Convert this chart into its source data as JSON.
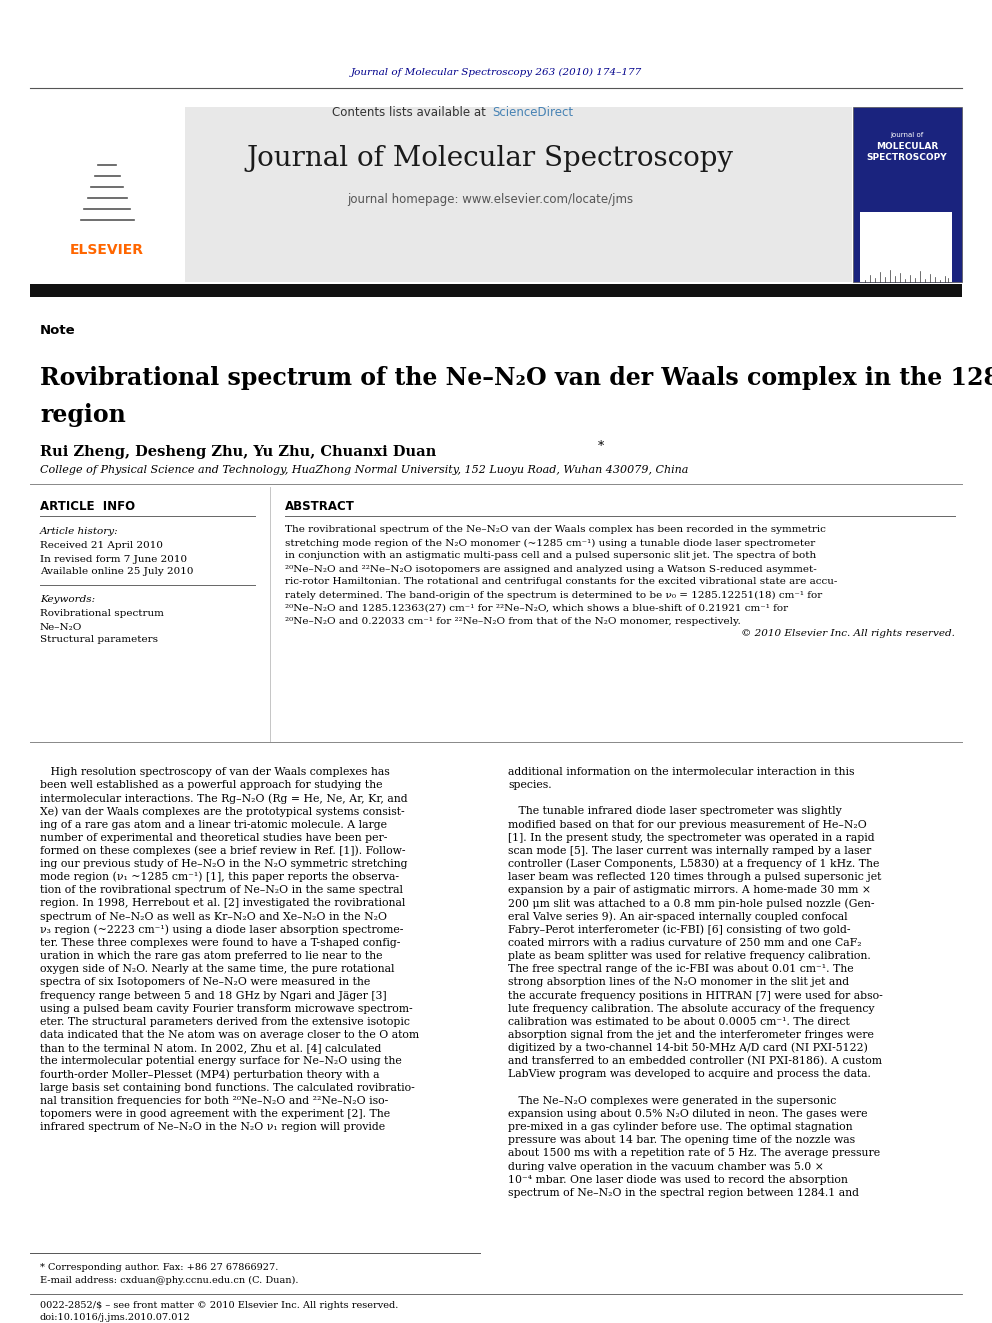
{
  "journal_citation": "Journal of Molecular Spectroscopy 263 (2010) 174–177",
  "journal_name": "Journal of Molecular Spectroscopy",
  "journal_homepage": "journal homepage: www.elsevier.com/locate/jms",
  "contents_line": "Contents lists available at ScienceDirect",
  "note_label": "Note",
  "authors": "Rui Zheng, Desheng Zhu, Yu Zhu, Chuanxi Duan",
  "affiliation": "College of Physical Science and Technology, HuaZhong Normal University, 152 Luoyu Road, Wuhan 430079, China",
  "article_info_title": "ARTICLE  INFO",
  "abstract_title": "ABSTRACT",
  "article_history_label": "Article history:",
  "received": "Received 21 April 2010",
  "revised": "In revised form 7 June 2010",
  "available": "Available online 25 July 2010",
  "keywords_label": "Keywords:",
  "keyword1": "Rovibrational spectrum",
  "keyword2": "Ne–N₂O",
  "keyword3": "Structural parameters",
  "copyright": "© 2010 Elsevier Inc. All rights reserved.",
  "footer_note": "* Corresponding author. Fax: +86 27 67866927.",
  "footer_email": "E-mail address: cxduan@phy.ccnu.edu.cn (C. Duan).",
  "footer_issn": "0022-2852/$ – see front matter © 2010 Elsevier Inc. All rights reserved.",
  "footer_doi": "doi:10.1016/j.jms.2010.07.012",
  "bg_color": "#ffffff",
  "text_color": "#000000",
  "journal_citation_color": "#00008B",
  "elsevier_color": "#FF6600",
  "sciencedirect_color": "#4682B4",
  "header_bg": "#e8e8e8",
  "abstract_lines": [
    "The rovibrational spectrum of the Ne–N₂O van der Waals complex has been recorded in the symmetric",
    "stretching mode region of the N₂O monomer (~1285 cm⁻¹) using a tunable diode laser spectrometer",
    "in conjunction with an astigmatic multi-pass cell and a pulsed supersonic slit jet. The spectra of both",
    "²⁰Ne–N₂O and ²²Ne–N₂O isotopomers are assigned and analyzed using a Watson S-reduced asymmet-",
    "ric-rotor Hamiltonian. The rotational and centrifugal constants for the excited vibrational state are accu-",
    "rately determined. The band-origin of the spectrum is determined to be ν₀ = 1285.12251(18) cm⁻¹ for",
    "²⁰Ne–N₂O and 1285.12363(27) cm⁻¹ for ²²Ne–N₂O, which shows a blue-shift of 0.21921 cm⁻¹ for",
    "²⁰Ne–N₂O and 0.22033 cm⁻¹ for ²²Ne–N₂O from that of the N₂O monomer, respectively."
  ],
  "body_col1": [
    "   High resolution spectroscopy of van der Waals complexes has",
    "been well established as a powerful approach for studying the",
    "intermolecular interactions. The Rg–N₂O (Rg = He, Ne, Ar, Kr, and",
    "Xe) van der Waals complexes are the prototypical systems consist-",
    "ing of a rare gas atom and a linear tri-atomic molecule. A large",
    "number of experimental and theoretical studies have been per-",
    "formed on these complexes (see a brief review in Ref. [1]). Follow-",
    "ing our previous study of He–N₂O in the N₂O symmetric stretching",
    "mode region (ν₁ ~1285 cm⁻¹) [1], this paper reports the observa-",
    "tion of the rovibrational spectrum of Ne–N₂O in the same spectral",
    "region. In 1998, Herrebout et al. [2] investigated the rovibrational",
    "spectrum of Ne–N₂O as well as Kr–N₂O and Xe–N₂O in the N₂O",
    "ν₃ region (~2223 cm⁻¹) using a diode laser absorption spectrome-",
    "ter. These three complexes were found to have a T-shaped config-",
    "uration in which the rare gas atom preferred to lie near to the",
    "oxygen side of N₂O. Nearly at the same time, the pure rotational",
    "spectra of six Isotopomers of Ne–N₂O were measured in the",
    "frequency range between 5 and 18 GHz by Ngari and Jäger [3]",
    "using a pulsed beam cavity Fourier transform microwave spectrom-",
    "eter. The structural parameters derived from the extensive isotopic",
    "data indicated that the Ne atom was on average closer to the O atom",
    "than to the terminal N atom. In 2002, Zhu et al. [4] calculated",
    "the intermolecular potential energy surface for Ne–N₂O using the",
    "fourth-order Moller–Plesset (MP4) perturbation theory with a",
    "large basis set containing bond functions. The calculated rovibratio-",
    "nal transition frequencies for both ²⁰Ne–N₂O and ²²Ne–N₂O iso-",
    "topomers were in good agreement with the experiment [2]. The",
    "infrared spectrum of Ne–N₂O in the N₂O ν₁ region will provide"
  ],
  "body_col2": [
    "additional information on the intermolecular interaction in this",
    "species.",
    "",
    "   The tunable infrared diode laser spectrometer was slightly",
    "modified based on that for our previous measurement of He–N₂O",
    "[1]. In the present study, the spectrometer was operated in a rapid",
    "scan mode [5]. The laser current was internally ramped by a laser",
    "controller (Laser Components, L5830) at a frequency of 1 kHz. The",
    "laser beam was reflected 120 times through a pulsed supersonic jet",
    "expansion by a pair of astigmatic mirrors. A home-made 30 mm ×",
    "200 μm slit was attached to a 0.8 mm pin-hole pulsed nozzle (Gen-",
    "eral Valve series 9). An air-spaced internally coupled confocal",
    "Fabry–Perot interferometer (ic-FBI) [6] consisting of two gold-",
    "coated mirrors with a radius curvature of 250 mm and one CaF₂",
    "plate as beam splitter was used for relative frequency calibration.",
    "The free spectral range of the ic-FBI was about 0.01 cm⁻¹. The",
    "strong absorption lines of the N₂O monomer in the slit jet and",
    "the accurate frequency positions in HITRAN [7] were used for abso-",
    "lute frequency calibration. The absolute accuracy of the frequency",
    "calibration was estimated to be about 0.0005 cm⁻¹. The direct",
    "absorption signal from the jet and the interferometer fringes were",
    "digitized by a two-channel 14-bit 50-MHz A/D card (NI PXI-5122)",
    "and transferred to an embedded controller (NI PXI-8186). A custom",
    "LabView program was developed to acquire and process the data.",
    "",
    "   The Ne–N₂O complexes were generated in the supersonic",
    "expansion using about 0.5% N₂O diluted in neon. The gases were",
    "pre-mixed in a gas cylinder before use. The optimal stagnation",
    "pressure was about 14 bar. The opening time of the nozzle was",
    "about 1500 ms with a repetition rate of 5 Hz. The average pressure",
    "during valve operation in the vacuum chamber was 5.0 ×",
    "10⁻⁴ mbar. One laser diode was used to record the absorption",
    "spectrum of Ne–N₂O in the spectral region between 1284.1 and"
  ]
}
